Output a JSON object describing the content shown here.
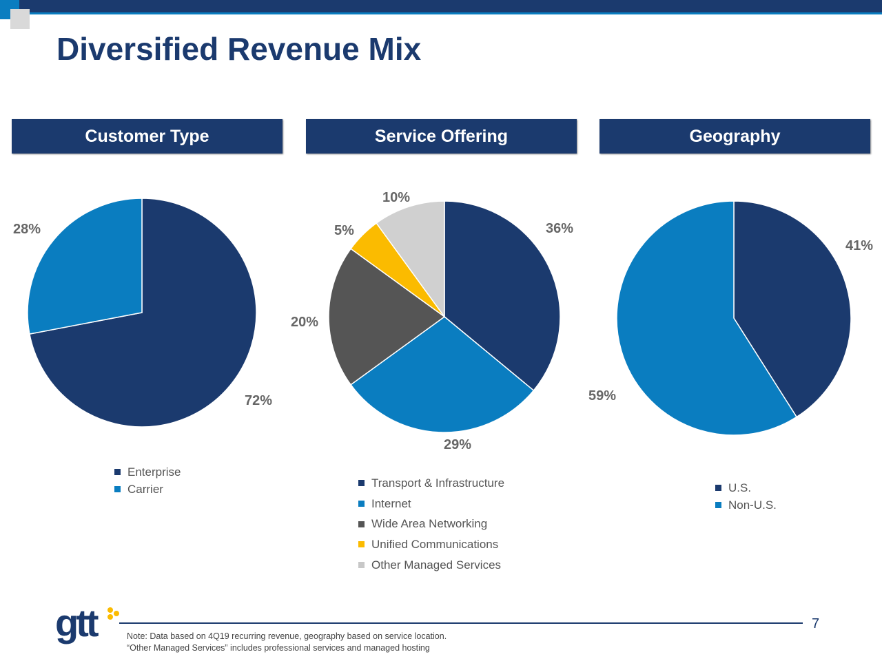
{
  "title": "Diversified Revenue Mix",
  "page_number": "7",
  "notes": [
    "Note: Data based on 4Q19 recurring revenue, geography based on service location.",
    "“Other Managed Services” includes professional services and managed hosting"
  ],
  "logo_text": "gtt",
  "colors": {
    "dark_blue": "#1b3a6e",
    "light_blue": "#0a7dc0",
    "dark_gray": "#555555",
    "yellow": "#fbbb00",
    "light_gray": "#d0d0d0"
  },
  "chart_data": [
    {
      "type": "pie",
      "title": "Customer Type",
      "categories": [
        "Enterprise",
        "Carrier"
      ],
      "values": [
        72,
        28
      ],
      "data_labels": [
        "72%",
        "28%"
      ],
      "colors": [
        "#1b3a6e",
        "#0a7dc0"
      ],
      "legend": "bottom"
    },
    {
      "type": "pie",
      "title": "Service Offering",
      "categories": [
        "Transport & Infrastructure",
        "Internet",
        "Wide Area Networking",
        "Unified Communications",
        "Other Managed Services"
      ],
      "values": [
        36,
        29,
        20,
        5,
        10
      ],
      "data_labels": [
        "36%",
        "29%",
        "20%",
        "5%",
        "10%"
      ],
      "colors": [
        "#1b3a6e",
        "#0a7dc0",
        "#555555",
        "#fbbb00",
        "#d0d0d0"
      ],
      "legend": "bottom"
    },
    {
      "type": "pie",
      "title": "Geography",
      "categories": [
        "U.S.",
        "Non-U.S."
      ],
      "values": [
        41,
        59
      ],
      "data_labels": [
        "41%",
        "59%"
      ],
      "colors": [
        "#1b3a6e",
        "#0a7dc0"
      ],
      "legend": "bottom"
    }
  ]
}
